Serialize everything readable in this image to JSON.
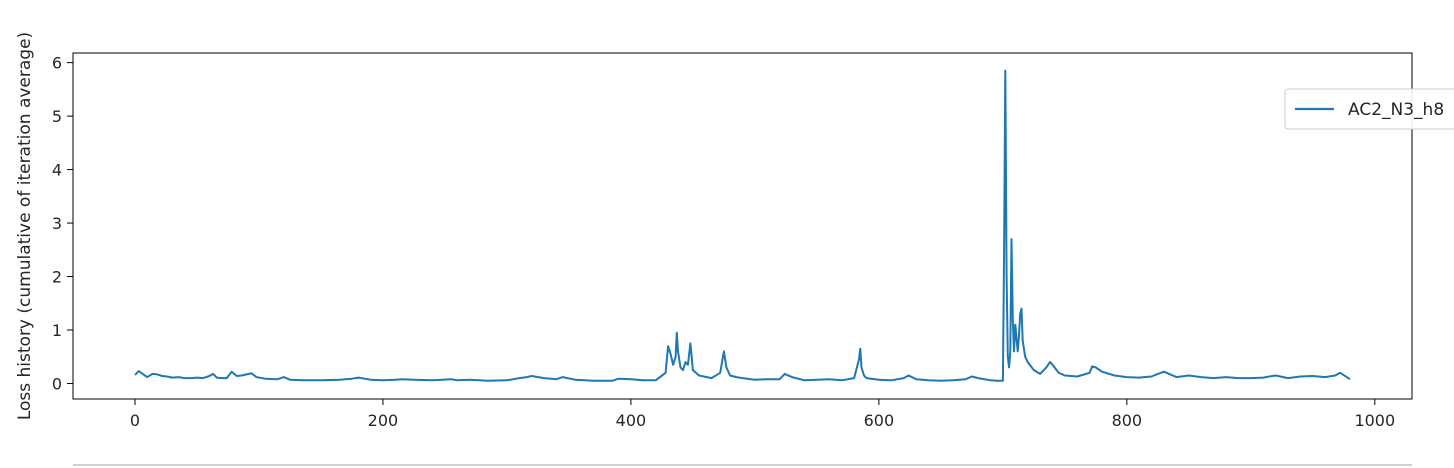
{
  "chart_data": {
    "type": "line",
    "title": "",
    "xlabel": "",
    "ylabel": "Loss history (cumulative of iteration average)",
    "xlim": [
      -50,
      1030
    ],
    "ylim": [
      -0.29,
      6.18
    ],
    "xticks": [
      0,
      200,
      400,
      600,
      800,
      1000
    ],
    "yticks": [
      0,
      1,
      2,
      3,
      4,
      5,
      6
    ],
    "grid": false,
    "legend_position": "top-right",
    "series": [
      {
        "name": "AC2_N3_h8",
        "color": "#1f77b4",
        "x": [
          0,
          3,
          5,
          8,
          10,
          14,
          18,
          22,
          26,
          30,
          35,
          40,
          45,
          50,
          55,
          60,
          63,
          66,
          70,
          74,
          78,
          82,
          86,
          90,
          94,
          98,
          105,
          115,
          120,
          125,
          135,
          150,
          165,
          175,
          180,
          190,
          200,
          210,
          215,
          225,
          240,
          255,
          260,
          270,
          285,
          300,
          310,
          316,
          320,
          330,
          340,
          345,
          355,
          370,
          385,
          390,
          400,
          410,
          420,
          428,
          430,
          432,
          434,
          436,
          437,
          438,
          440,
          442,
          444,
          446,
          448,
          450,
          455,
          465,
          472,
          475,
          477,
          480,
          485,
          490,
          500,
          510,
          520,
          524,
          530,
          540,
          550,
          560,
          570,
          580,
          584,
          585,
          586,
          588,
          590,
          600,
          610,
          620,
          624,
          630,
          640,
          650,
          660,
          670,
          675,
          680,
          690,
          695,
          700,
          701,
          702,
          703,
          704,
          705,
          706,
          707,
          708,
          709,
          710,
          712,
          713,
          714,
          715,
          716,
          718,
          720,
          725,
          730,
          735,
          738,
          740,
          745,
          750,
          760,
          770,
          772,
          775,
          780,
          790,
          800,
          810,
          820,
          825,
          830,
          840,
          850,
          860,
          870,
          880,
          890,
          900,
          910,
          915,
          920,
          930,
          940,
          950,
          960,
          968,
          972,
          980
        ],
        "y": [
          0.16,
          0.23,
          0.2,
          0.15,
          0.12,
          0.18,
          0.17,
          0.14,
          0.13,
          0.11,
          0.12,
          0.1,
          0.1,
          0.11,
          0.1,
          0.14,
          0.18,
          0.11,
          0.1,
          0.1,
          0.22,
          0.14,
          0.15,
          0.17,
          0.19,
          0.12,
          0.09,
          0.08,
          0.12,
          0.07,
          0.06,
          0.06,
          0.07,
          0.09,
          0.11,
          0.07,
          0.06,
          0.07,
          0.08,
          0.07,
          0.06,
          0.08,
          0.06,
          0.07,
          0.05,
          0.06,
          0.1,
          0.12,
          0.14,
          0.1,
          0.08,
          0.12,
          0.07,
          0.05,
          0.05,
          0.09,
          0.08,
          0.06,
          0.06,
          0.2,
          0.7,
          0.55,
          0.35,
          0.5,
          0.95,
          0.6,
          0.3,
          0.25,
          0.4,
          0.35,
          0.75,
          0.25,
          0.15,
          0.1,
          0.2,
          0.6,
          0.3,
          0.15,
          0.12,
          0.1,
          0.07,
          0.08,
          0.08,
          0.18,
          0.12,
          0.06,
          0.07,
          0.08,
          0.06,
          0.1,
          0.45,
          0.65,
          0.3,
          0.15,
          0.1,
          0.07,
          0.06,
          0.1,
          0.15,
          0.08,
          0.06,
          0.05,
          0.06,
          0.08,
          0.13,
          0.1,
          0.06,
          0.05,
          0.05,
          2.5,
          5.85,
          2.0,
          0.5,
          0.3,
          0.6,
          2.7,
          1.2,
          0.6,
          1.1,
          0.6,
          0.9,
          1.3,
          1.4,
          0.8,
          0.5,
          0.4,
          0.25,
          0.18,
          0.3,
          0.4,
          0.35,
          0.2,
          0.15,
          0.13,
          0.2,
          0.32,
          0.3,
          0.22,
          0.15,
          0.12,
          0.11,
          0.13,
          0.18,
          0.22,
          0.12,
          0.15,
          0.12,
          0.1,
          0.12,
          0.1,
          0.1,
          0.11,
          0.13,
          0.15,
          0.1,
          0.13,
          0.14,
          0.12,
          0.15,
          0.2,
          0.08
        ]
      }
    ]
  }
}
